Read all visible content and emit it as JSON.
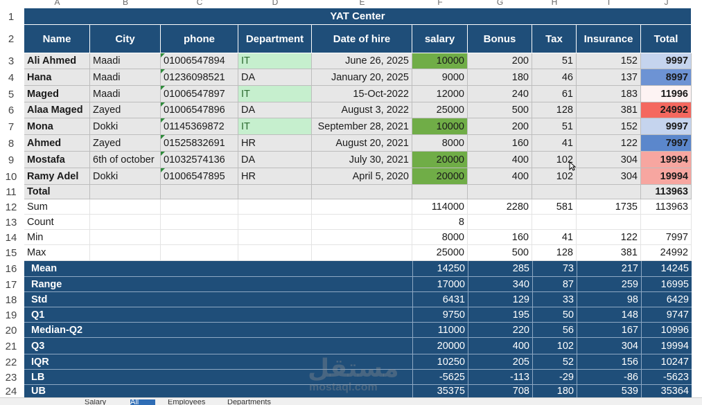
{
  "title": "YAT Center",
  "columns": [
    "A",
    "B",
    "C",
    "D",
    "E",
    "F",
    "G",
    "H",
    "I",
    "J"
  ],
  "headers": [
    "Name",
    "City",
    "phone",
    "Department",
    "Date of hire",
    "salary",
    "Bonus",
    "Tax",
    "Insurance",
    "Total"
  ],
  "employees": [
    {
      "name": "Ali  Ahmed",
      "city": "Maadi",
      "phone": "01006547894",
      "dept": "IT",
      "date": "June 26, 2025",
      "salary": "10000",
      "bonus": "200",
      "tax": "51",
      "insurance": "152",
      "total": "9997"
    },
    {
      "name": "Hana",
      "city": "Maadi",
      "phone": "01236098521",
      "dept": "DA",
      "date": "January 20, 2025",
      "salary": "9000",
      "bonus": "180",
      "tax": "46",
      "insurance": "137",
      "total": "8997"
    },
    {
      "name": "Maged",
      "city": "Maadi",
      "phone": "01006547897",
      "dept": "IT",
      "date": "15-Oct-2022",
      "salary": "12000",
      "bonus": "240",
      "tax": "61",
      "insurance": "183",
      "total": "11996"
    },
    {
      "name": "Alaa Maged",
      "city": "Zayed",
      "phone": "01006547896",
      "dept": "DA",
      "date": "August 3, 2022",
      "salary": "25000",
      "bonus": "500",
      "tax": "128",
      "insurance": "381",
      "total": "24992"
    },
    {
      "name": "Mona",
      "city": "Dokki",
      "phone": "01145369872",
      "dept": "IT",
      "date": "September 28, 2021",
      "salary": "10000",
      "bonus": "200",
      "tax": "51",
      "insurance": "152",
      "total": "9997"
    },
    {
      "name": "Ahmed",
      "city": "Zayed",
      "phone": "01525832691",
      "dept": "HR",
      "date": "August 20, 2021",
      "salary": "8000",
      "bonus": "160",
      "tax": "41",
      "insurance": "122",
      "total": "7997"
    },
    {
      "name": "Mostafa",
      "city": "6th of october",
      "phone": "01032574136",
      "dept": "DA",
      "date": "July 30, 2021",
      "salary": "20000",
      "bonus": "400",
      "tax": "102",
      "insurance": "304",
      "total": "19994"
    },
    {
      "name": "Ramy Adel",
      "city": "Dokki",
      "phone": "01006547895",
      "dept": "HR",
      "date": "April 5, 2020",
      "salary": "20000",
      "bonus": "400",
      "tax": "102",
      "insurance": "304",
      "total": "19994"
    }
  ],
  "total_row": {
    "label": "Total",
    "value": "113963"
  },
  "basic_stats": [
    {
      "label": "Sum",
      "salary": "114000",
      "bonus": "2280",
      "tax": "581",
      "insurance": "1735",
      "total": "113963"
    },
    {
      "label": "Count",
      "salary": "8",
      "bonus": "",
      "tax": "",
      "insurance": "",
      "total": ""
    },
    {
      "label": "Min",
      "salary": "8000",
      "bonus": "160",
      "tax": "41",
      "insurance": "122",
      "total": "7997"
    },
    {
      "label": "Max",
      "salary": "25000",
      "bonus": "500",
      "tax": "128",
      "insurance": "381",
      "total": "24992"
    }
  ],
  "adv_stats": [
    {
      "label": "Mean",
      "salary": "14250",
      "bonus": "285",
      "tax": "73",
      "insurance": "217",
      "total": "14245"
    },
    {
      "label": "Range",
      "salary": "17000",
      "bonus": "340",
      "tax": "87",
      "insurance": "259",
      "total": "16995"
    },
    {
      "label": "Std",
      "salary": "6431",
      "bonus": "129",
      "tax": "33",
      "insurance": "98",
      "total": "6429"
    },
    {
      "label": "Q1",
      "salary": "9750",
      "bonus": "195",
      "tax": "50",
      "insurance": "148",
      "total": "9747"
    },
    {
      "label": "Median-Q2",
      "salary": "11000",
      "bonus": "220",
      "tax": "56",
      "insurance": "167",
      "total": "10996"
    },
    {
      "label": "Q3",
      "salary": "20000",
      "bonus": "400",
      "tax": "102",
      "insurance": "304",
      "total": "19994"
    },
    {
      "label": "IQR",
      "salary": "10250",
      "bonus": "205",
      "tax": "52",
      "insurance": "156",
      "total": "10247"
    },
    {
      "label": "LB",
      "salary": "-5625",
      "bonus": "-113",
      "tax": "-29",
      "insurance": "-86",
      "total": "-5623"
    },
    {
      "label": "UB",
      "salary": "35375",
      "bonus": "708",
      "tax": "180",
      "insurance": "539",
      "total": "35364"
    }
  ],
  "row_numbers": [
    "1",
    "2",
    "3",
    "4",
    "5",
    "6",
    "7",
    "8",
    "9",
    "10",
    "11",
    "12",
    "13",
    "14",
    "15",
    "16",
    "17",
    "18",
    "19",
    "20",
    "21",
    "22",
    "23",
    "24"
  ],
  "sheet_tabs": [
    "Salary",
    "All",
    "Employees",
    "Departments"
  ],
  "watermark": {
    "arabic": "مستقل",
    "latin": "mostaql.com"
  },
  "colors": {
    "header": "#1f4e79",
    "green_dept": "#c6efce",
    "green_salary": "#70ad47"
  },
  "total_colors": [
    "#c5d4ee",
    "#6d93d4",
    "#fdf3f3",
    "#f4685f",
    "#c5d4ee",
    "#5b87cc",
    "#f7a6a0",
    "#f7a6a0"
  ]
}
